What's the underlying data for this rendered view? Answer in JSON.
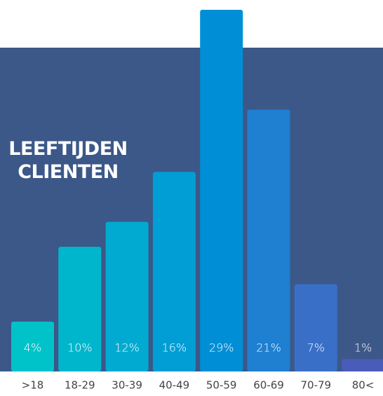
{
  "chart_data": {
    "type": "bar",
    "title": "LEEFTIJDEN CLIENTEN",
    "categories": [
      ">18",
      "18-29",
      "30-39",
      "40-49",
      "50-59",
      "60-69",
      "70-79",
      "80<"
    ],
    "values": [
      4,
      10,
      12,
      16,
      29,
      21,
      7,
      1
    ],
    "value_labels": [
      "4%",
      "10%",
      "12%",
      "16%",
      "29%",
      "21%",
      "7%",
      "1%"
    ],
    "colors": [
      "#00c2c9",
      "#00b6cc",
      "#00aad1",
      "#009ed5",
      "#008fd6",
      "#1f7fd0",
      "#3a6fc7",
      "#4a5cb9"
    ]
  }
}
